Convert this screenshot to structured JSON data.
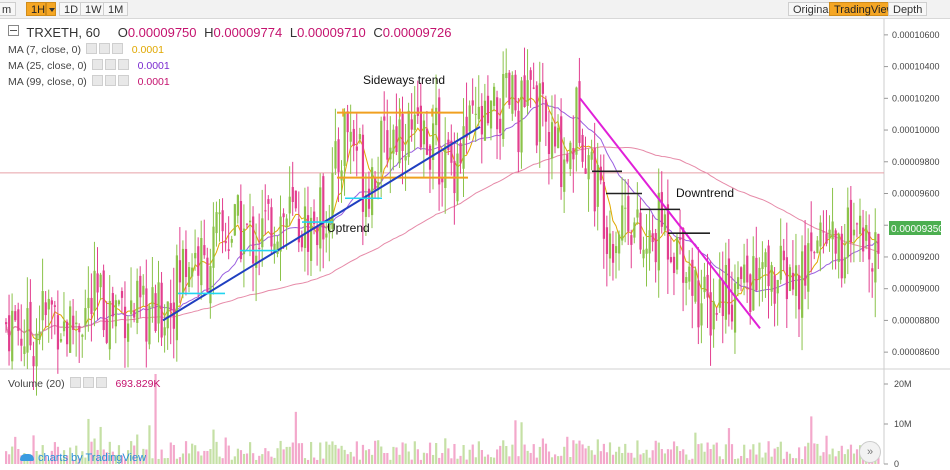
{
  "toolbar": {
    "cut_label": "m",
    "interval_active": "1H",
    "intervals": [
      "1D",
      "1W",
      "1M"
    ],
    "views": [
      "Original",
      "TradingView",
      "Depth"
    ],
    "active_view": "TradingView"
  },
  "header": {
    "symbol": "TRXETH, 60",
    "o_label": "O",
    "o_value": "0.00009750",
    "h_label": "H",
    "h_value": "0.00009774",
    "l_label": "L",
    "l_value": "0.00009710",
    "c_label": "C",
    "c_value": "0.00009726"
  },
  "indicators": [
    {
      "label": "MA (7, close, 0)",
      "value": "0.0001",
      "color": "#e0a800"
    },
    {
      "label": "MA (25, close, 0)",
      "value": "0.0001",
      "color": "#7a2bd0"
    },
    {
      "label": "MA (99, close, 0)",
      "value": "0.0001",
      "color": "#c4126e"
    }
  ],
  "volume_pane": {
    "label": "Volume (20)",
    "value": "693.829K",
    "value_color": "#c4126e"
  },
  "brand": {
    "text": "charts by TradingView"
  },
  "nav": {
    "scroll_glyph": "»"
  },
  "colors": {
    "up": "#8bc34a",
    "down": "#e23f8f",
    "sideways": "#f0a020",
    "uptrend": "#1f3fc0",
    "downtrend": "#e020d8",
    "support": "#22d4f0",
    "resistance": "#222222",
    "last_price": "#e8a0a8",
    "current_badge": "#4caf50"
  },
  "chart_data": {
    "type": "candlestick",
    "series_name": "TRXETH, 60",
    "ylim": [
      8.5e-05,
      0.000107
    ],
    "y_ticks": [
      "0.00010600",
      "0.00010400",
      "0.00010200",
      "0.00010000",
      "0.00009800",
      "0.00009600",
      "0.00009400",
      "0.00009200",
      "0.00009000",
      "0.00008800",
      "0.00008600"
    ],
    "current_price": "0.00009350",
    "last_price_line": 9.73e-05,
    "volume_ticks": [
      "20M",
      "10M",
      "0"
    ],
    "volume_ylim": [
      0,
      23000000
    ],
    "close_path": [
      [
        0,
        8.75e-05
      ],
      [
        10,
        8.8e-05
      ],
      [
        20,
        8.75e-05
      ],
      [
        28,
        8.68e-05
      ],
      [
        35,
        8.7e-05
      ],
      [
        40,
        8.85e-05
      ],
      [
        45,
        8.8e-05
      ],
      [
        50,
        8.87e-05
      ],
      [
        58,
        8.83e-05
      ],
      [
        68,
        8.74e-05
      ],
      [
        75,
        8.8e-05
      ],
      [
        82,
        8.85e-05
      ],
      [
        92,
        8.88e-05
      ],
      [
        100,
        8.92e-05
      ],
      [
        110,
        8.85e-05
      ],
      [
        120,
        8.93e-05
      ],
      [
        128,
        8.88e-05
      ],
      [
        136,
        8.85e-05
      ],
      [
        142,
        8.8e-05
      ],
      [
        148,
        8.85e-05
      ],
      [
        155,
        8.8e-05
      ],
      [
        162,
        8.85e-05
      ],
      [
        168,
        8.93e-05
      ],
      [
        175,
        8.98e-05
      ],
      [
        182,
        9.15e-05
      ],
      [
        188,
        9.2e-05
      ],
      [
        196,
        9.22e-05
      ],
      [
        204,
        9.12e-05
      ],
      [
        212,
        9.25e-05
      ],
      [
        220,
        9.32e-05
      ],
      [
        228,
        9.35e-05
      ],
      [
        236,
        9.37e-05
      ],
      [
        244,
        9.35e-05
      ],
      [
        252,
        9.3e-05
      ],
      [
        262,
        9.35e-05
      ],
      [
        270,
        9.42e-05
      ],
      [
        280,
        9.45e-05
      ],
      [
        290,
        9.45e-05
      ],
      [
        298,
        9.4e-05
      ],
      [
        306,
        9.38e-05
      ],
      [
        314,
        9.4e-05
      ],
      [
        322,
        9.45e-05
      ],
      [
        328,
        9.55e-05
      ],
      [
        334,
        9.68e-05
      ],
      [
        340,
        9.85e-05
      ],
      [
        346,
        0.0001005
      ],
      [
        352,
        9.95e-05
      ],
      [
        358,
        9.9e-05
      ],
      [
        364,
        9.65e-05
      ],
      [
        370,
        9.72e-05
      ],
      [
        376,
        9.8e-05
      ],
      [
        382,
        9.85e-05
      ],
      [
        388,
        9.95e-05
      ],
      [
        396,
        0.0001
      ],
      [
        404,
        0.0001005
      ],
      [
        412,
        9.95e-05
      ],
      [
        420,
        9.9e-05
      ],
      [
        428,
        9.98e-05
      ],
      [
        436,
        9.92e-05
      ],
      [
        442,
        9.82e-05
      ],
      [
        450,
        9.75e-05
      ],
      [
        456,
        9.85e-05
      ],
      [
        464,
        9.95e-05
      ],
      [
        472,
        9.98e-05
      ],
      [
        480,
        0.0001002
      ],
      [
        488,
        0.0001
      ],
      [
        496,
        0.0001008
      ],
      [
        504,
        0.0001015
      ],
      [
        512,
        0.0001018
      ],
      [
        518,
        0.0001008
      ],
      [
        524,
        0.0001015
      ],
      [
        530,
        0.000102
      ],
      [
        536,
        0.0001012
      ],
      [
        542,
        0.0001005
      ],
      [
        548,
        9.95e-05
      ],
      [
        556,
        9.85e-05
      ],
      [
        564,
        9.85e-05
      ],
      [
        572,
        9.9e-05
      ],
      [
        578,
        0.0001015
      ],
      [
        584,
        9.98e-05
      ],
      [
        590,
        9.8e-05
      ],
      [
        596,
        9.65e-05
      ],
      [
        602,
        9.58e-05
      ],
      [
        608,
        9.4e-05
      ],
      [
        614,
        9.35e-05
      ],
      [
        620,
        9.43e-05
      ],
      [
        626,
        9.55e-05
      ],
      [
        632,
        9.45e-05
      ],
      [
        638,
        9.3e-05
      ],
      [
        644,
        9.2e-05
      ],
      [
        650,
        9.25e-05
      ],
      [
        656,
        9.33e-05
      ],
      [
        662,
        9.45e-05
      ],
      [
        668,
        9.35e-05
      ],
      [
        676,
        9.28e-05
      ],
      [
        684,
        9.25e-05
      ],
      [
        690,
        9.12e-05
      ],
      [
        696,
        9e-05
      ],
      [
        702,
        8.9e-05
      ],
      [
        708,
        8.85e-05
      ],
      [
        716,
        8.93e-05
      ],
      [
        724,
        9.05e-05
      ],
      [
        732,
        8.98e-05
      ],
      [
        740,
        9e-05
      ],
      [
        748,
        9.05e-05
      ],
      [
        756,
        9.03e-05
      ],
      [
        764,
        9.08e-05
      ],
      [
        772,
        9.02e-05
      ],
      [
        780,
        9.05e-05
      ],
      [
        790,
        9.08e-05
      ],
      [
        798,
        9e-05
      ],
      [
        804,
        9.08e-05
      ],
      [
        810,
        9.28e-05
      ],
      [
        816,
        9.4e-05
      ],
      [
        822,
        9.32e-05
      ],
      [
        828,
        9.38e-05
      ],
      [
        836,
        9.3e-05
      ],
      [
        842,
        9.2e-05
      ],
      [
        846,
        9.45e-05
      ],
      [
        852,
        9.2e-05
      ],
      [
        858,
        9.28e-05
      ],
      [
        864,
        9.25e-05
      ],
      [
        870,
        9.35e-05
      ],
      [
        876,
        9.3e-05
      ],
      [
        882,
        9.35e-05
      ]
    ],
    "annotations": [
      {
        "kind": "text",
        "text": "Sideways trend"
      },
      {
        "kind": "text",
        "text": "Uptrend"
      },
      {
        "kind": "text",
        "text": "Downtrend"
      },
      {
        "kind": "hline",
        "role": "sideways-top",
        "y": 0.0001011,
        "from": 337,
        "to": 463
      },
      {
        "kind": "hline",
        "role": "sideways-bottom",
        "y": 9.7e-05,
        "from": 337,
        "to": 468
      },
      {
        "kind": "trendline",
        "role": "uptrend",
        "from": [
          163,
          8.8e-05
        ],
        "to": [
          480,
          0.0001002
        ]
      },
      {
        "kind": "trendline",
        "role": "downtrend",
        "from": [
          580,
          0.000102
        ],
        "to": [
          760,
          8.75e-05
        ]
      },
      {
        "kind": "hline",
        "role": "support",
        "y": 8.97e-05,
        "from": 178,
        "to": 225
      },
      {
        "kind": "hline",
        "role": "support",
        "y": 9.24e-05,
        "from": 240,
        "to": 278
      },
      {
        "kind": "hline",
        "role": "support",
        "y": 9.42e-05,
        "from": 302,
        "to": 333
      },
      {
        "kind": "hline",
        "role": "support",
        "y": 9.57e-05,
        "from": 345,
        "to": 382
      },
      {
        "kind": "hline",
        "role": "resistance",
        "y": 9.74e-05,
        "from": 592,
        "to": 622
      },
      {
        "kind": "hline",
        "role": "resistance",
        "y": 9.6e-05,
        "from": 606,
        "to": 642
      },
      {
        "kind": "hline",
        "role": "resistance",
        "y": 9.5e-05,
        "from": 640,
        "to": 680
      },
      {
        "kind": "hline",
        "role": "resistance",
        "y": 9.35e-05,
        "from": 668,
        "to": 710
      }
    ]
  }
}
